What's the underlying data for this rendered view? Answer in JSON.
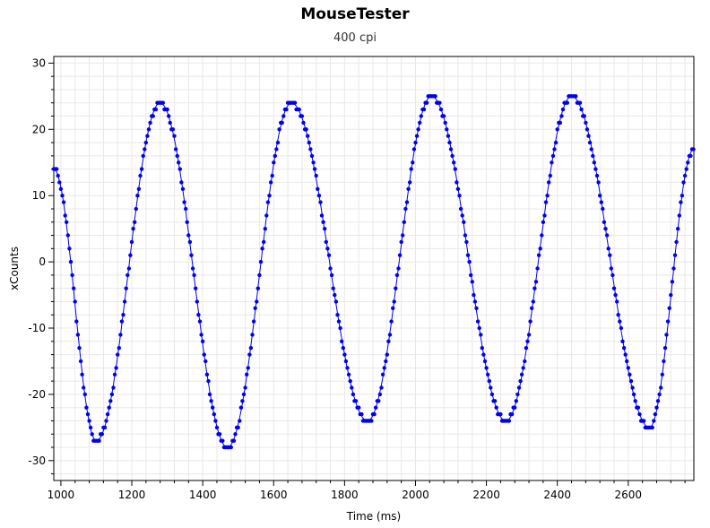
{
  "chart_data": {
    "type": "scatter",
    "title": "MouseTester",
    "subtitle": "400 cpi",
    "xlabel": "Time (ms)",
    "ylabel": "xCounts",
    "xlim": [
      980,
      2785
    ],
    "ylim": [
      -33,
      31
    ],
    "xticks": [
      1000,
      1200,
      1400,
      1600,
      1800,
      2000,
      2200,
      2400,
      2600
    ],
    "yticks": [
      -30,
      -20,
      -10,
      0,
      10,
      20,
      30
    ],
    "grid": true,
    "series": [
      {
        "mode": "line+markers",
        "wave_extrema": [
          {
            "x": 980,
            "y": 14
          },
          {
            "x": 1100,
            "y": -27
          },
          {
            "x": 1280,
            "y": 24
          },
          {
            "x": 1470,
            "y": -28
          },
          {
            "x": 1650,
            "y": 24
          },
          {
            "x": 1865,
            "y": -24
          },
          {
            "x": 2045,
            "y": 25
          },
          {
            "x": 2255,
            "y": -24
          },
          {
            "x": 2440,
            "y": 25
          },
          {
            "x": 2660,
            "y": -25
          },
          {
            "x": 2785,
            "y": 17
          }
        ],
        "sample_interval_ms": 4
      }
    ],
    "colors": {
      "series": "#0000ee",
      "grid": "#e8e8e8",
      "axis": "#000000"
    }
  }
}
